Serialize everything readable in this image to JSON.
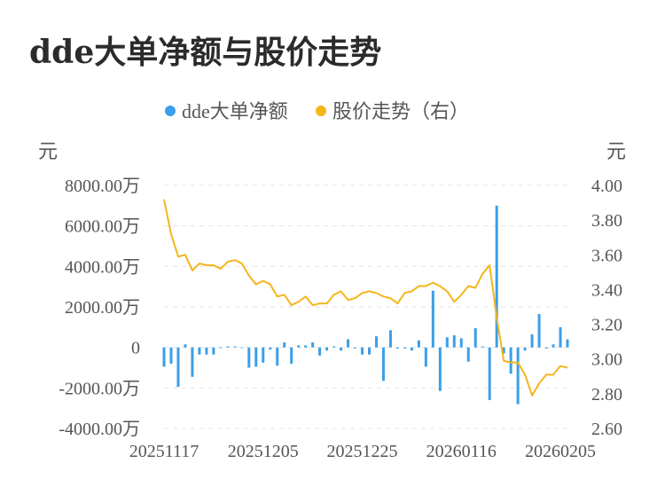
{
  "title": "dde大单净额与股价走势",
  "chart_data": {
    "type": "bar+line",
    "legend": [
      {
        "name": "dde大单净额",
        "color": "#3b9ee8"
      },
      {
        "name": "股价走势（右）",
        "color": "#f5b51b"
      }
    ],
    "left_unit": "元",
    "right_unit": "元",
    "y_left": {
      "min": -4000,
      "max": 8000,
      "ticks": [
        8000,
        6000,
        4000,
        2000,
        0,
        -2000,
        -4000
      ],
      "tick_labels": [
        "8000.00万",
        "6000.00万",
        "4000.00万",
        "2000.00万",
        "0",
        "-2000.00万",
        "-4000.00万"
      ]
    },
    "y_right": {
      "min": 2.6,
      "max": 4.0,
      "ticks": [
        4.0,
        3.8,
        3.6,
        3.4,
        3.2,
        3.0,
        2.8,
        2.6
      ],
      "tick_labels": [
        "4.00",
        "3.80",
        "3.60",
        "3.40",
        "3.20",
        "3.00",
        "2.80",
        "2.60"
      ]
    },
    "x_tick_labels": [
      {
        "index": 0,
        "label": "20251117"
      },
      {
        "index": 14,
        "label": "20251205"
      },
      {
        "index": 28,
        "label": "20251225"
      },
      {
        "index": 42,
        "label": "20260116"
      },
      {
        "index": 56,
        "label": "20260205"
      }
    ],
    "bar_values": [
      -950,
      -800,
      -1950,
      150,
      -1450,
      -350,
      -350,
      -350,
      0,
      50,
      50,
      0,
      -1000,
      -950,
      -750,
      -100,
      -900,
      250,
      -800,
      100,
      100,
      250,
      -400,
      -150,
      50,
      -150,
      400,
      -50,
      -350,
      -350,
      550,
      -1650,
      850,
      -50,
      -50,
      -150,
      350,
      -950,
      2800,
      -2150,
      500,
      600,
      450,
      -700,
      950,
      50,
      -2600,
      7000,
      -300,
      -1300,
      -2800,
      -150,
      650,
      1650,
      -50,
      150,
      1000,
      400
    ],
    "price_values": [
      3.92,
      3.72,
      3.59,
      3.6,
      3.51,
      3.55,
      3.54,
      3.54,
      3.52,
      3.56,
      3.57,
      3.55,
      3.48,
      3.43,
      3.45,
      3.43,
      3.36,
      3.37,
      3.31,
      3.33,
      3.36,
      3.31,
      3.32,
      3.32,
      3.37,
      3.39,
      3.34,
      3.35,
      3.38,
      3.39,
      3.38,
      3.36,
      3.35,
      3.32,
      3.38,
      3.39,
      3.42,
      3.42,
      3.44,
      3.42,
      3.39,
      3.33,
      3.37,
      3.42,
      3.41,
      3.49,
      3.54,
      3.24,
      2.99,
      2.98,
      2.98,
      2.91,
      2.79,
      2.86,
      2.91,
      2.91,
      2.96,
      2.95
    ]
  }
}
